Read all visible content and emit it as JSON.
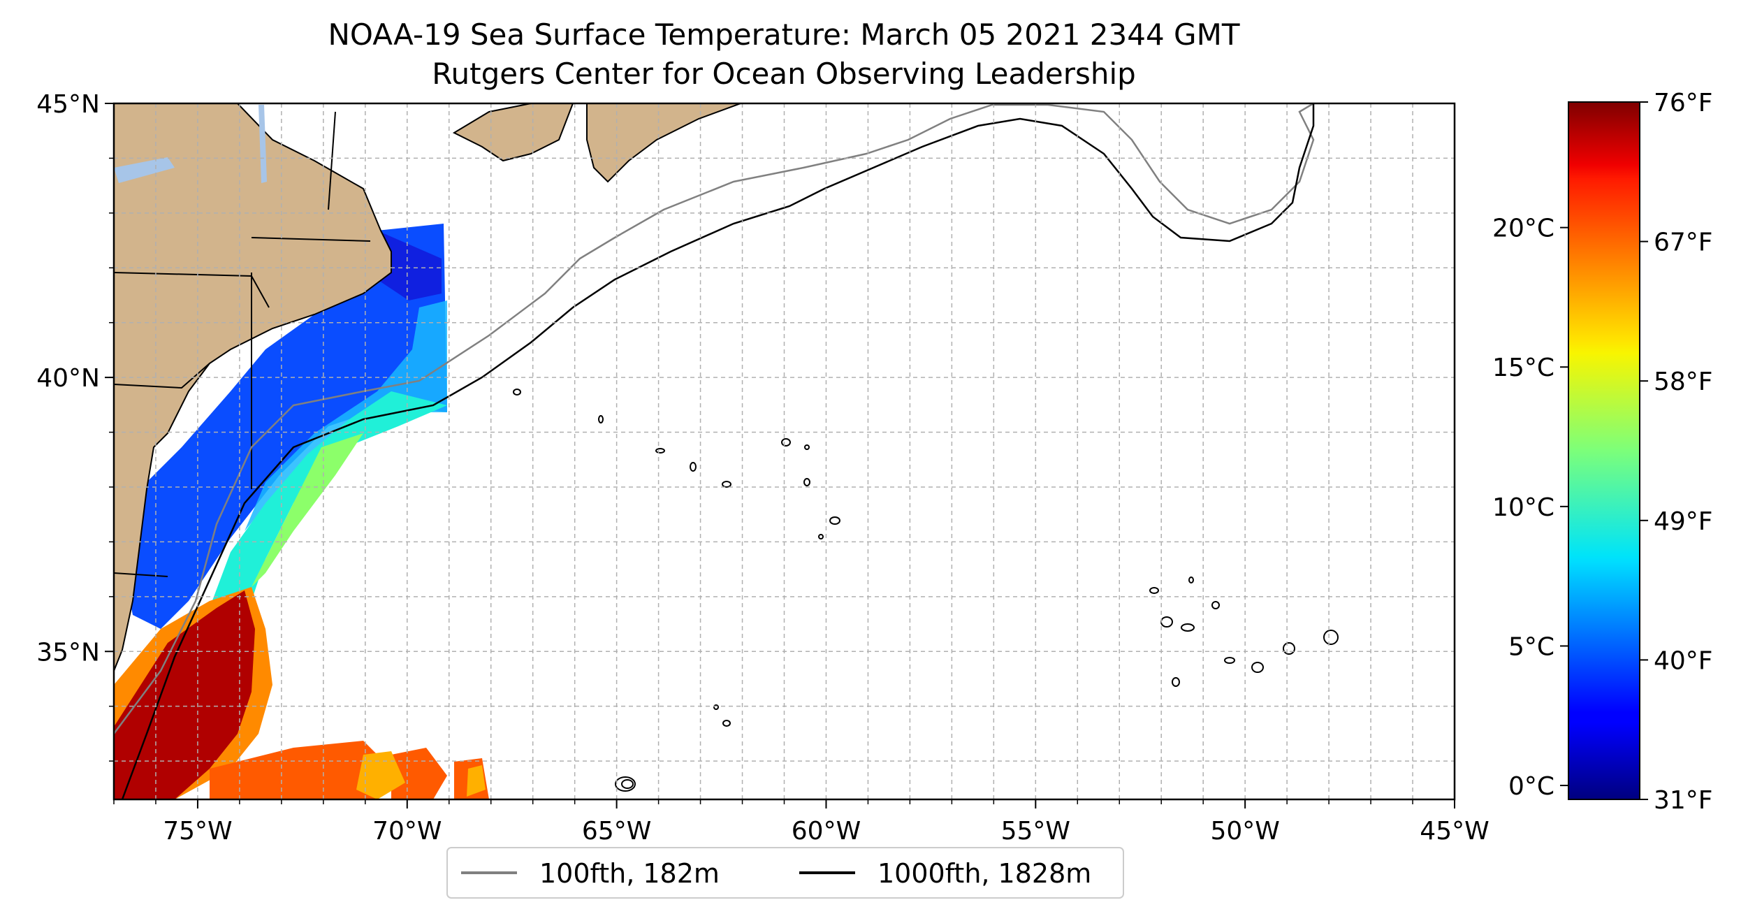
{
  "title": {
    "line1": "NOAA-19 Sea Surface Temperature: March 05 2021 2344 GMT",
    "line2": "Rutgers Center for Ocean Observing Leadership"
  },
  "map": {
    "lon_range": [
      -77,
      -45
    ],
    "lat_range": [
      32.3,
      45
    ],
    "lon_ticks": [
      {
        "value": -75,
        "label": "75°W"
      },
      {
        "value": -70,
        "label": "70°W"
      },
      {
        "value": -65,
        "label": "65°W"
      },
      {
        "value": -60,
        "label": "60°W"
      },
      {
        "value": -55,
        "label": "55°W"
      },
      {
        "value": -50,
        "label": "50°W"
      },
      {
        "value": -45,
        "label": "45°W"
      }
    ],
    "lat_ticks": [
      {
        "value": 35,
        "label": "35°N"
      },
      {
        "value": 40,
        "label": "40°N"
      },
      {
        "value": 45,
        "label": "45°N"
      }
    ],
    "gridlines": true,
    "land_color": "#d2b48c",
    "lake_color": "#a7c5e8"
  },
  "colorbar": {
    "colormap": "jet",
    "celsius_range": [
      -0.5,
      24.5
    ],
    "celsius_ticks": [
      {
        "value": 0,
        "label": "0°C"
      },
      {
        "value": 5,
        "label": "5°C"
      },
      {
        "value": 10,
        "label": "10°C"
      },
      {
        "value": 15,
        "label": "15°C"
      },
      {
        "value": 20,
        "label": "20°C"
      }
    ],
    "fahrenheit_ticks": [
      {
        "value": 31,
        "label": "31°F"
      },
      {
        "value": 40,
        "label": "40°F"
      },
      {
        "value": 49,
        "label": "49°F"
      },
      {
        "value": 58,
        "label": "58°F"
      },
      {
        "value": 67,
        "label": "67°F"
      },
      {
        "value": 76,
        "label": "76°F"
      }
    ]
  },
  "legend": {
    "placement": "bottom-center",
    "items": [
      {
        "label": "100fth, 182m",
        "color": "#808080"
      },
      {
        "label": "1000fth, 1828m",
        "color": "#000000"
      }
    ]
  }
}
